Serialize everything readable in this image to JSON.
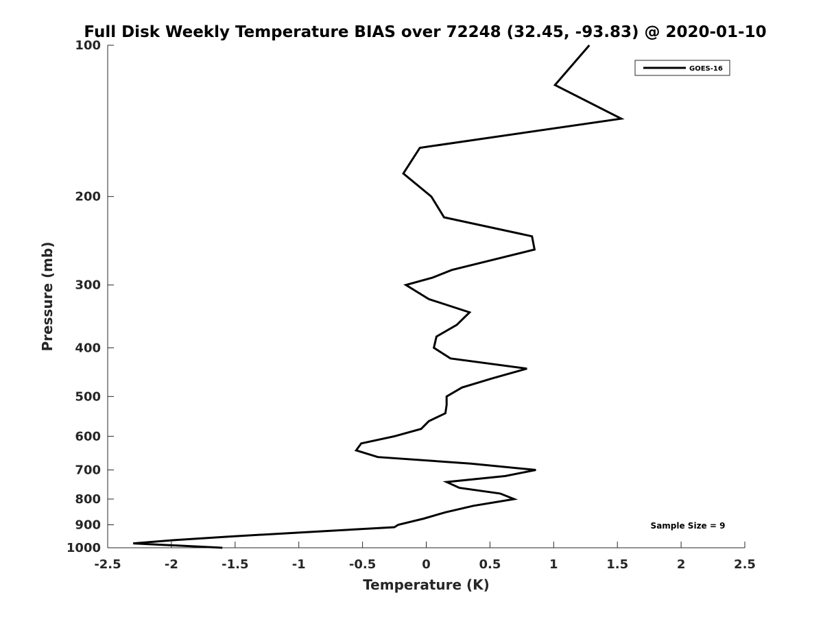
{
  "chart_data": {
    "type": "line",
    "title": "Full Disk Weekly Temperature BIAS over 72248 (32.45, -93.83) @ 2020-01-10",
    "xlabel": "Temperature (K)",
    "ylabel": "Pressure (mb)",
    "xlim": [
      -2.5,
      2.5
    ],
    "ylim": [
      1000,
      100
    ],
    "y_scale": "log",
    "y_reversed": true,
    "grid": false,
    "x_ticks": [
      -2.5,
      -2,
      -1.5,
      -1,
      -0.5,
      0,
      0.5,
      1,
      1.5,
      2,
      2.5
    ],
    "x_tick_labels": [
      "-2.5",
      "-2",
      "-1.5",
      "-1",
      "-0.5",
      "0",
      "0.5",
      "1",
      "1.5",
      "2",
      "2.5"
    ],
    "y_ticks": [
      100,
      200,
      300,
      400,
      500,
      600,
      700,
      800,
      900,
      1000
    ],
    "y_tick_labels": [
      "100",
      "200",
      "300",
      "400",
      "500",
      "600",
      "700",
      "800",
      "900",
      "1000"
    ],
    "legend_position": "top-right",
    "series": [
      {
        "name": "GOES-16",
        "color": "#000000",
        "points": [
          {
            "x": 1.28,
            "y": 100
          },
          {
            "x": 1.01,
            "y": 120
          },
          {
            "x": 1.53,
            "y": 140
          },
          {
            "x": -0.05,
            "y": 160
          },
          {
            "x": -0.18,
            "y": 180
          },
          {
            "x": 0.04,
            "y": 200
          },
          {
            "x": 0.14,
            "y": 220
          },
          {
            "x": 0.83,
            "y": 240
          },
          {
            "x": 0.85,
            "y": 255
          },
          {
            "x": 0.2,
            "y": 280
          },
          {
            "x": 0.05,
            "y": 290
          },
          {
            "x": -0.16,
            "y": 300
          },
          {
            "x": 0.02,
            "y": 320
          },
          {
            "x": 0.34,
            "y": 340
          },
          {
            "x": 0.24,
            "y": 360
          },
          {
            "x": 0.08,
            "y": 380
          },
          {
            "x": 0.06,
            "y": 400
          },
          {
            "x": 0.19,
            "y": 420
          },
          {
            "x": 0.79,
            "y": 440
          },
          {
            "x": 0.52,
            "y": 460
          },
          {
            "x": 0.28,
            "y": 480
          },
          {
            "x": 0.16,
            "y": 500
          },
          {
            "x": 0.16,
            "y": 520
          },
          {
            "x": 0.15,
            "y": 540
          },
          {
            "x": 0.02,
            "y": 560
          },
          {
            "x": -0.04,
            "y": 580
          },
          {
            "x": -0.25,
            "y": 600
          },
          {
            "x": -0.51,
            "y": 620
          },
          {
            "x": -0.55,
            "y": 640
          },
          {
            "x": -0.38,
            "y": 660
          },
          {
            "x": 0.35,
            "y": 680
          },
          {
            "x": 0.86,
            "y": 700
          },
          {
            "x": 0.62,
            "y": 720
          },
          {
            "x": 0.16,
            "y": 740
          },
          {
            "x": 0.26,
            "y": 760
          },
          {
            "x": 0.58,
            "y": 780
          },
          {
            "x": 0.69,
            "y": 800
          },
          {
            "x": 0.37,
            "y": 825
          },
          {
            "x": 0.15,
            "y": 850
          },
          {
            "x": -0.02,
            "y": 875
          },
          {
            "x": -0.22,
            "y": 900
          },
          {
            "x": -0.25,
            "y": 910
          },
          {
            "x": -0.75,
            "y": 925
          },
          {
            "x": -1.55,
            "y": 950
          },
          {
            "x": -1.97,
            "y": 965
          },
          {
            "x": -2.3,
            "y": 980
          },
          {
            "x": -1.6,
            "y": 1000
          }
        ]
      }
    ],
    "annotations": [
      {
        "text": "Sample Size = 9",
        "position": "bottom-right"
      }
    ]
  }
}
